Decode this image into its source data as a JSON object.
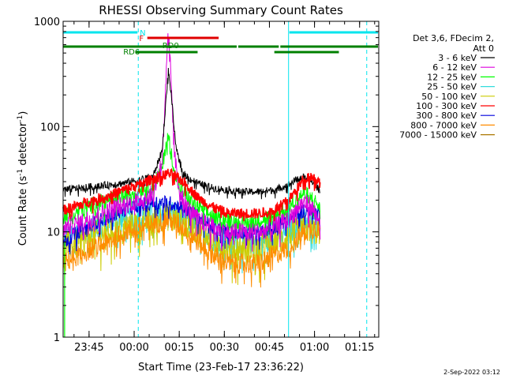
{
  "colors": {
    "background": "#ffffff",
    "axes": "#000000",
    "cyan": "#00e5ee",
    "red": "#e00000",
    "green": "#008000",
    "black": "#000000",
    "magenta": "#dd00dd",
    "lime": "#00ff00",
    "aqua": "#33dddd",
    "olive_yellow": "#cccc00",
    "bright_red": "#ff0000",
    "blue": "#0000dd",
    "orange": "#ff8c00",
    "brown": "#aa7700"
  },
  "chart_data": {
    "type": "line",
    "title": "RHESSI Observing Summary Count Rates",
    "xlabel": "Start Time (23-Feb-17 23:36:22)",
    "ylabel_main": "Count Rate (s",
    "ylabel_sup1": "-1",
    "ylabel_mid": " detector",
    "ylabel_sup2": "-1",
    "ylabel_end": ")",
    "yscale": "log",
    "ylim": [
      1,
      1000
    ],
    "xlim_minutes": [
      0,
      105
    ],
    "xtick_labels": [
      "23:45",
      "00:00",
      "00:15",
      "00:30",
      "00:45",
      "01:00",
      "01:15"
    ],
    "xtick_minutes": [
      8.63,
      23.63,
      38.63,
      53.63,
      68.63,
      83.63,
      98.63
    ],
    "ytick_labels": [
      "1",
      "10",
      "100",
      "1000"
    ],
    "ytick_values": [
      1,
      10,
      100,
      1000
    ],
    "legend_header_1": "Det 3,6, FDecim 2,",
    "legend_header_2": "Att 0",
    "legend_position": "right",
    "data_window_minutes": [
      0,
      85.5
    ],
    "series": [
      {
        "name": "3 - 6 keV",
        "color": "#000000",
        "x": [
          0,
          5,
          10,
          15,
          20,
          25,
          30,
          33,
          34,
          35,
          36,
          37,
          38,
          40,
          42,
          45,
          50,
          55,
          60,
          65,
          70,
          75,
          78,
          80,
          82,
          84,
          85,
          85.5
        ],
        "values": [
          25,
          26,
          27,
          28,
          29,
          31,
          34,
          60,
          150,
          340,
          200,
          90,
          55,
          36,
          32,
          29,
          26,
          25,
          24,
          24,
          25,
          28,
          32,
          33,
          31,
          28,
          27,
          25
        ]
      },
      {
        "name": "6 - 12 keV",
        "color": "#dd00dd",
        "x": [
          0,
          5,
          10,
          15,
          20,
          25,
          30,
          33,
          34,
          35,
          36,
          37,
          38,
          40,
          42,
          45,
          50,
          55,
          60,
          65,
          70,
          75,
          78,
          80,
          82,
          84,
          85,
          85.5
        ],
        "values": [
          11,
          12,
          14,
          16,
          18,
          20,
          23,
          50,
          200,
          800,
          250,
          60,
          30,
          20,
          16,
          13,
          11,
          10,
          10,
          10,
          11,
          13,
          17,
          19,
          18,
          15,
          14,
          11
        ]
      },
      {
        "name": "12 - 25 keV",
        "color": "#00ff00",
        "x": [
          0,
          5,
          10,
          15,
          20,
          25,
          30,
          33,
          34,
          35,
          36,
          37,
          38,
          40,
          42,
          45,
          50,
          55,
          60,
          65,
          70,
          75,
          78,
          80,
          82,
          84,
          85,
          85.5
        ],
        "values": [
          14,
          16,
          18,
          20,
          22,
          25,
          28,
          40,
          65,
          80,
          55,
          40,
          30,
          24,
          20,
          17,
          14,
          13,
          12,
          13,
          14,
          17,
          21,
          23,
          22,
          19,
          18,
          15
        ]
      },
      {
        "name": "25 - 50 keV",
        "color": "#33dddd",
        "x": [
          0,
          5,
          10,
          15,
          20,
          25,
          30,
          35,
          40,
          45,
          50,
          55,
          60,
          65,
          70,
          75,
          80,
          85,
          85.5
        ],
        "values": [
          9,
          10,
          11,
          12,
          13,
          14,
          15,
          16,
          14,
          11,
          9,
          8,
          8,
          8,
          9,
          10,
          13,
          12,
          10
        ]
      },
      {
        "name": "50 - 100 keV",
        "color": "#cccc00",
        "x": [
          0,
          5,
          10,
          15,
          20,
          25,
          30,
          35,
          40,
          45,
          50,
          55,
          60,
          65,
          70,
          75,
          80,
          85,
          85.5
        ],
        "values": [
          7,
          8,
          9,
          10,
          11,
          12,
          13,
          14,
          12,
          10,
          8,
          7,
          7,
          7,
          8,
          9,
          11,
          10,
          8
        ]
      },
      {
        "name": "100 - 300 keV",
        "color": "#ff0000",
        "x": [
          0,
          5,
          10,
          15,
          20,
          25,
          30,
          33,
          35,
          37,
          40,
          42,
          45,
          50,
          55,
          60,
          65,
          70,
          75,
          78,
          80,
          82,
          84,
          85,
          85.5
        ],
        "values": [
          16,
          18,
          20,
          22,
          25,
          28,
          32,
          34,
          36,
          34,
          30,
          26,
          21,
          17,
          15,
          15,
          15,
          16,
          20,
          26,
          32,
          34,
          32,
          31,
          28
        ]
      },
      {
        "name": "300 - 800 keV",
        "color": "#0000dd",
        "x": [
          0,
          5,
          10,
          15,
          20,
          25,
          30,
          35,
          40,
          45,
          50,
          55,
          60,
          65,
          70,
          75,
          80,
          85,
          85.5
        ],
        "values": [
          8,
          10,
          12,
          14,
          16,
          18,
          19,
          19,
          17,
          14,
          11,
          10,
          10,
          10,
          11,
          13,
          16,
          15,
          13
        ]
      },
      {
        "name": "800 - 7000 keV",
        "color": "#ff8c00",
        "x": [
          0,
          5,
          10,
          15,
          20,
          25,
          30,
          35,
          40,
          45,
          50,
          55,
          60,
          65,
          70,
          75,
          80,
          85,
          85.5
        ],
        "values": [
          5,
          6,
          7,
          8,
          10,
          11,
          12,
          13,
          11,
          8,
          6,
          5,
          5,
          5,
          6,
          7,
          10,
          11,
          9
        ]
      },
      {
        "name": "7000 - 15000 keV",
        "color": "#aa7700",
        "x": [
          0,
          85.5
        ],
        "values": [
          null,
          null
        ]
      }
    ],
    "annotations": {
      "N_label": "N",
      "F_label": "F",
      "RD0_label": "RD0",
      "RD6_label": "RD6"
    },
    "bars": [
      {
        "name": "night",
        "label": "N",
        "color": "#00e5ee",
        "level": "top",
        "segments_minutes": [
          [
            0,
            25
          ],
          [
            75,
            105
          ]
        ]
      },
      {
        "name": "flare",
        "label": "F",
        "color": "#e00000",
        "level": "second",
        "segments_minutes": [
          [
            28,
            52
          ]
        ]
      },
      {
        "name": "rd0",
        "label": "RD0",
        "color": "#008000",
        "level": "third",
        "segments_minutes": [
          [
            0,
            58
          ],
          [
            58,
            72
          ],
          [
            72,
            105
          ]
        ]
      },
      {
        "name": "rd6",
        "label": "RD6",
        "color": "#008000",
        "level": "fourth",
        "segments_minutes": [
          [
            24,
            45
          ],
          [
            70,
            92
          ]
        ]
      }
    ],
    "vertical_lines": [
      {
        "name": "night-end-solid-left",
        "minute": 0,
        "style": "solid",
        "color": "#00e5ee"
      },
      {
        "name": "night-end-dashed",
        "minute": 25,
        "style": "dashed",
        "color": "#00e5ee"
      },
      {
        "name": "night-start-solid",
        "minute": 75,
        "style": "solid",
        "color": "#00e5ee"
      },
      {
        "name": "night-start-dashed",
        "minute": 101,
        "style": "dashed",
        "color": "#00e5ee"
      }
    ]
  },
  "footer": {
    "date_stamp": "2-Sep-2022 03:12"
  }
}
